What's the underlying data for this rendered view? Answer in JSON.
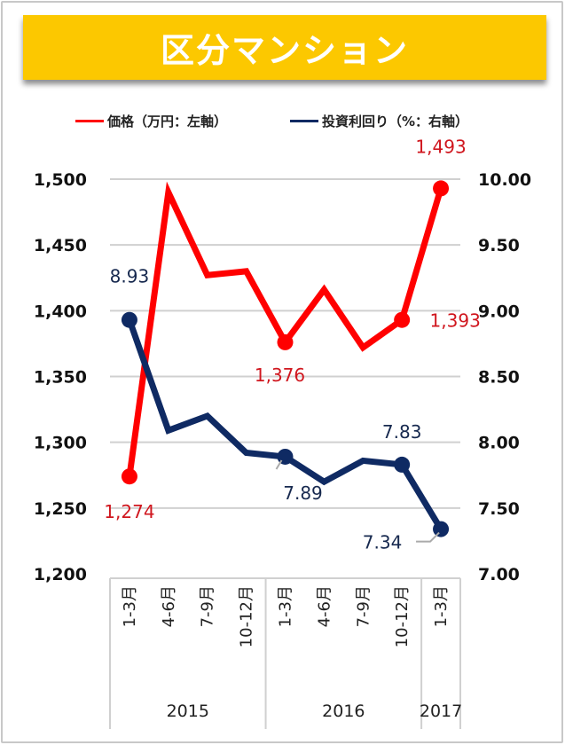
{
  "title": "区分マンション",
  "colors": {
    "banner": "#fcc800",
    "price": "#ff0000",
    "yield": "#0f2a63",
    "price_label": "#d0161e",
    "yield_label": "#17294f",
    "grid": "#d0d0d0"
  },
  "legend": [
    {
      "label": "価格（万円：左軸）",
      "color": "#ff0000"
    },
    {
      "label": "投資利回り（%：右軸）",
      "color": "#0f2a63"
    }
  ],
  "chart_data": {
    "type": "line",
    "title": "区分マンション",
    "categories": [
      "1-3月",
      "4-6月",
      "7-9月",
      "10-12月",
      "1-3月",
      "4-6月",
      "7-9月",
      "10-12月",
      "1-3月"
    ],
    "category_groups": [
      {
        "label": "2015",
        "span": 4
      },
      {
        "label": "2016",
        "span": 4
      },
      {
        "label": "2017",
        "span": 1
      }
    ],
    "series": [
      {
        "name": "価格（万円：左軸）",
        "axis": "left",
        "values": [
          1274,
          1490,
          1427,
          1430,
          1376,
          1416,
          1372,
          1393,
          1493
        ],
        "data_labels": {
          "0": "1,274",
          "4": "1,376",
          "7": "1,393",
          "8": "1,493"
        },
        "markers": [
          0,
          4,
          7,
          8
        ]
      },
      {
        "name": "投資利回り（%：右軸）",
        "axis": "right",
        "values": [
          8.93,
          8.09,
          8.2,
          7.92,
          7.89,
          7.7,
          7.86,
          7.83,
          7.34
        ],
        "data_labels": {
          "0": "8.93",
          "4": "7.89",
          "7": "7.83",
          "8": "7.34"
        },
        "markers": [
          0,
          4,
          7,
          8
        ]
      }
    ],
    "left_axis": {
      "min": 1200,
      "max": 1500,
      "step": 50,
      "ticks": [
        "1,200",
        "1,250",
        "1,300",
        "1,350",
        "1,400",
        "1,450",
        "1,500"
      ]
    },
    "right_axis": {
      "min": 7.0,
      "max": 10.0,
      "step": 0.5,
      "ticks": [
        "7.00",
        "7.50",
        "8.00",
        "8.50",
        "9.00",
        "9.50",
        "10.00"
      ]
    },
    "grid": true,
    "legend_position": "top"
  }
}
